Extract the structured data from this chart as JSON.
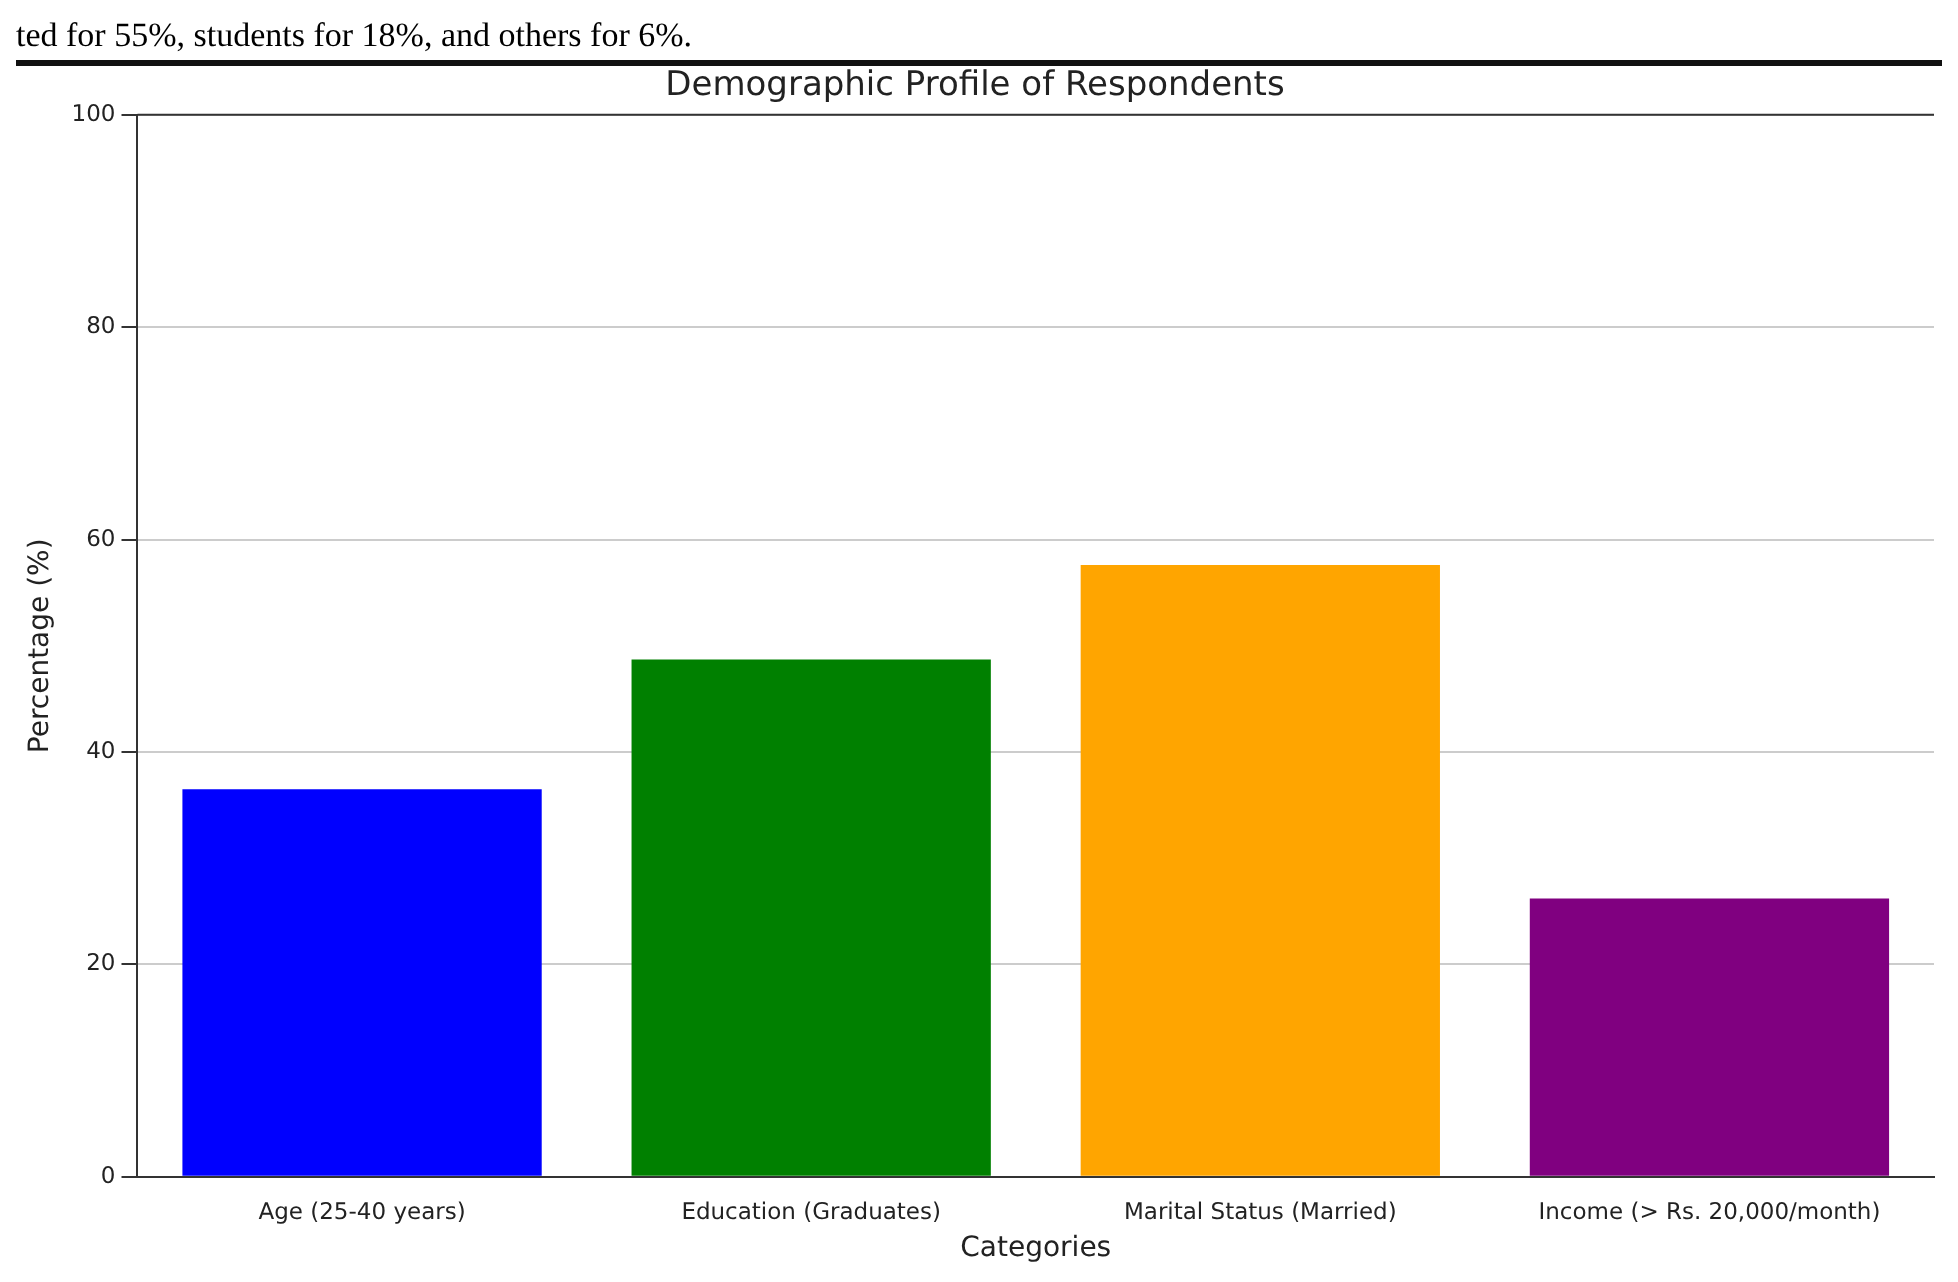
{
  "chart_data": {
    "type": "bar",
    "title": "Demographic Profile of Respondents",
    "xlabel": "Categories",
    "ylabel": "Percentage (%)",
    "categories": [
      "Age (25-40 years)",
      "Education (Graduates)",
      "Marital Status (Married)",
      "Income (> Rs. 20,000/month)"
    ],
    "values": [
      36.5,
      48.7,
      57.6,
      26.2
    ],
    "colors": [
      "#0000ff",
      "#008000",
      "#ffa500",
      "#800080"
    ],
    "ylim": [
      0,
      100
    ],
    "yticks": [
      0,
      20,
      40,
      60,
      80,
      100
    ],
    "grid": "y",
    "legend": false,
    "annotations": [
      "ted for 55%, students for 18%, and others for 6%."
    ]
  }
}
